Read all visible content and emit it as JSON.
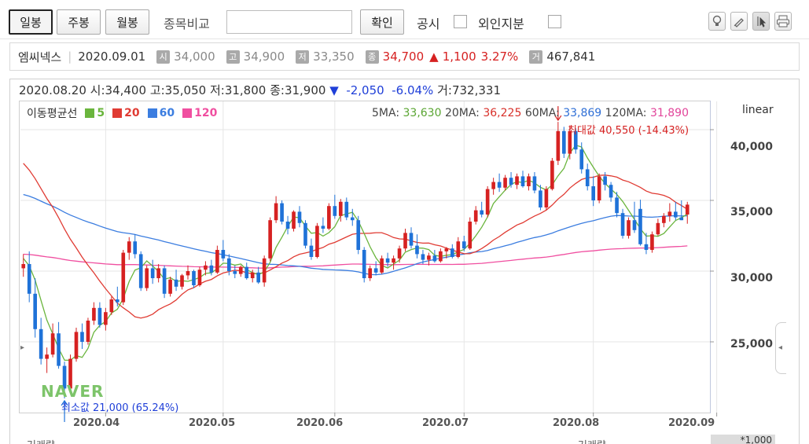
{
  "toolbar": {
    "tabs": [
      {
        "label": "일봉",
        "active": true
      },
      {
        "label": "주봉",
        "active": false
      },
      {
        "label": "월봉",
        "active": false
      }
    ],
    "compare_label": "종목비교",
    "confirm_label": "확인",
    "disclosure_label": "공시",
    "foreign_label": "외인지분",
    "tool_icons": [
      "bulb-icon",
      "pen-icon",
      "cursor-icon",
      "print-icon"
    ]
  },
  "summary": {
    "name": "엠씨넥스",
    "date": "2020.09.01",
    "open_badge": "시",
    "open": "34,000",
    "high_badge": "고",
    "high": "34,900",
    "low_badge": "저",
    "low": "33,350",
    "close_badge": "종",
    "close": "34,700",
    "change_arrow": "▲",
    "change": "1,100",
    "change_pct": "3.27%",
    "volume_badge": "거",
    "volume": "467,841"
  },
  "info": {
    "date": "2020.08.20",
    "open_label": "시:",
    "open": "34,400",
    "high_label": "고:",
    "high": "35,050",
    "low_label": "저:",
    "low": "31,800",
    "close_label": "종:",
    "close": "31,900",
    "arrow": "▼",
    "change": "-2,050",
    "change_pct": "-6.04%",
    "volume_label": "거:",
    "volume": "732,331"
  },
  "legend": {
    "title": "이동평균선",
    "items": [
      {
        "label": "5",
        "color": "#6ab53d"
      },
      {
        "label": "20",
        "color": "#e03b33"
      },
      {
        "label": "60",
        "color": "#3b7de0"
      },
      {
        "label": "120",
        "color": "#f04fa0"
      }
    ]
  },
  "ma_values": {
    "ma5_label": "5MA:",
    "ma5": "33,630",
    "ma20_label": "20MA:",
    "ma20": "36,225",
    "ma60_label": "60MA:",
    "ma60": "33,869",
    "ma120_label": "120MA:",
    "ma120": "31,890"
  },
  "scale_label": "linear",
  "annotations": {
    "max": "최대값 40,550 (-14.43%)",
    "min": "최소값 21,000 (65.24%)",
    "logo": "NAVER"
  },
  "bottom": {
    "left_label": "거래량",
    "right_label": "거래량",
    "unit": "*1,000"
  },
  "colors": {
    "up": "#d62121",
    "down": "#1f72d8",
    "ma5": "#6ab53d",
    "ma20": "#e03b33",
    "ma60": "#3b7de0",
    "ma120": "#f04fa0"
  },
  "chart_data": {
    "type": "candlestick",
    "ylim": [
      20000,
      42000
    ],
    "yticks": [
      "25,000",
      "30,000",
      "35,000",
      "40,000"
    ],
    "ytick_values": [
      25000,
      30000,
      35000,
      40000
    ],
    "xticks": [
      "2020.04",
      "2020.05",
      "2020.06",
      "2020.07",
      "2020.08",
      "2020.09"
    ],
    "xtick_index": [
      14,
      34,
      53,
      75,
      97,
      118
    ],
    "candles": [
      [
        30200,
        31200,
        29600,
        30500
      ],
      [
        30500,
        31400,
        27800,
        28400
      ],
      [
        28400,
        29500,
        25300,
        25900
      ],
      [
        25900,
        26700,
        23400,
        23800
      ],
      [
        23800,
        24600,
        22800,
        24100
      ],
      [
        24100,
        26300,
        23900,
        25600
      ],
      [
        25600,
        26400,
        23100,
        23300
      ],
      [
        23300,
        23600,
        21000,
        21700
      ],
      [
        21700,
        24100,
        21500,
        23800
      ],
      [
        23800,
        26000,
        23600,
        25700
      ],
      [
        25700,
        26300,
        24500,
        25000
      ],
      [
        25000,
        26700,
        24800,
        26500
      ],
      [
        26500,
        27800,
        26200,
        27400
      ],
      [
        27400,
        27800,
        26000,
        26200
      ],
      [
        26200,
        27400,
        25800,
        27100
      ],
      [
        27100,
        28200,
        26900,
        28000
      ],
      [
        28000,
        28900,
        27500,
        27800
      ],
      [
        27800,
        31500,
        27600,
        31300
      ],
      [
        31300,
        32400,
        30800,
        32100
      ],
      [
        32100,
        32600,
        30900,
        31200
      ],
      [
        31200,
        31400,
        28600,
        28800
      ],
      [
        28800,
        30400,
        28600,
        30200
      ],
      [
        30200,
        30800,
        29100,
        29500
      ],
      [
        29500,
        30500,
        29200,
        30200
      ],
      [
        30200,
        30400,
        28100,
        28400
      ],
      [
        28400,
        29600,
        28200,
        29400
      ],
      [
        29400,
        30100,
        28600,
        28900
      ],
      [
        28900,
        29800,
        28700,
        29700
      ],
      [
        29700,
        30400,
        29400,
        30000
      ],
      [
        30000,
        30100,
        28800,
        29000
      ],
      [
        29000,
        30300,
        28900,
        30100
      ],
      [
        30100,
        30700,
        29700,
        30400
      ],
      [
        30400,
        30800,
        29700,
        29900
      ],
      [
        29900,
        31800,
        29800,
        31500
      ],
      [
        31500,
        32200,
        30700,
        30900
      ],
      [
        30900,
        31200,
        29700,
        30000
      ],
      [
        30000,
        30400,
        29500,
        29800
      ],
      [
        29800,
        30400,
        29600,
        30300
      ],
      [
        30300,
        30600,
        29400,
        29500
      ],
      [
        29500,
        30100,
        29200,
        29900
      ],
      [
        29900,
        30300,
        29100,
        29200
      ],
      [
        29200,
        31100,
        28900,
        30900
      ],
      [
        30900,
        33800,
        30700,
        33600
      ],
      [
        33600,
        35300,
        33400,
        34800
      ],
      [
        34800,
        35000,
        33300,
        33500
      ],
      [
        33500,
        33900,
        32600,
        33000
      ],
      [
        33000,
        34300,
        32800,
        34200
      ],
      [
        34200,
        34600,
        33100,
        33400
      ],
      [
        33400,
        33600,
        31600,
        31800
      ],
      [
        31800,
        32300,
        30800,
        31000
      ],
      [
        31000,
        33400,
        30900,
        33200
      ],
      [
        33200,
        33800,
        32700,
        33000
      ],
      [
        33000,
        34800,
        32900,
        34600
      ],
      [
        34600,
        35400,
        33700,
        33900
      ],
      [
        33900,
        35100,
        33500,
        34900
      ],
      [
        34900,
        35200,
        33600,
        33800
      ],
      [
        33800,
        34400,
        33200,
        33600
      ],
      [
        33600,
        33900,
        31200,
        31500
      ],
      [
        31500,
        31700,
        29200,
        29500
      ],
      [
        29500,
        30400,
        29300,
        30200
      ],
      [
        30200,
        30700,
        29700,
        29900
      ],
      [
        29900,
        31100,
        29800,
        30900
      ],
      [
        30900,
        31300,
        30300,
        30600
      ],
      [
        30600,
        31100,
        30100,
        30900
      ],
      [
        30900,
        31800,
        30600,
        31600
      ],
      [
        31600,
        33000,
        31400,
        32700
      ],
      [
        32700,
        33100,
        31600,
        31800
      ],
      [
        31800,
        32600,
        30900,
        31200
      ],
      [
        31200,
        31500,
        30500,
        30800
      ],
      [
        30800,
        31300,
        30400,
        31100
      ],
      [
        31100,
        31500,
        30600,
        30700
      ],
      [
        30700,
        31600,
        30600,
        31400
      ],
      [
        31400,
        31700,
        30900,
        31600
      ],
      [
        31600,
        31900,
        30900,
        31000
      ],
      [
        31000,
        32400,
        30900,
        32100
      ],
      [
        32100,
        32500,
        31400,
        31600
      ],
      [
        31600,
        33800,
        31500,
        33500
      ],
      [
        33500,
        34600,
        33300,
        34300
      ],
      [
        34300,
        34900,
        33800,
        34000
      ],
      [
        34000,
        36000,
        33800,
        35800
      ],
      [
        35800,
        36600,
        35400,
        36300
      ],
      [
        36300,
        36900,
        35600,
        35900
      ],
      [
        35900,
        36800,
        35700,
        36600
      ],
      [
        36600,
        37000,
        35900,
        36100
      ],
      [
        36100,
        36900,
        35800,
        36700
      ],
      [
        36700,
        37100,
        35900,
        36000
      ],
      [
        36000,
        36900,
        35700,
        36700
      ],
      [
        36700,
        37000,
        35500,
        35700
      ],
      [
        35700,
        36100,
        34300,
        34500
      ],
      [
        34500,
        36000,
        34300,
        35800
      ],
      [
        35800,
        38000,
        35700,
        37800
      ],
      [
        37800,
        40550,
        37500,
        39900
      ],
      [
        39900,
        40200,
        38000,
        38300
      ],
      [
        38300,
        40300,
        37900,
        39900
      ],
      [
        39900,
        40100,
        38300,
        38600
      ],
      [
        38600,
        39100,
        36900,
        37200
      ],
      [
        37200,
        37600,
        35700,
        36000
      ],
      [
        36000,
        36700,
        34600,
        35000
      ],
      [
        35000,
        36900,
        34800,
        36700
      ],
      [
        36700,
        37000,
        35700,
        36100
      ],
      [
        36100,
        36300,
        34900,
        35200
      ],
      [
        35200,
        35600,
        33800,
        34100
      ],
      [
        34100,
        34400,
        32300,
        32500
      ],
      [
        32500,
        33800,
        32300,
        33600
      ],
      [
        33600,
        34900,
        32700,
        32900
      ],
      [
        34400,
        35050,
        31800,
        31900
      ],
      [
        31900,
        32700,
        31200,
        31500
      ],
      [
        31500,
        32800,
        31300,
        32600
      ],
      [
        32600,
        33700,
        32500,
        33400
      ],
      [
        33400,
        34100,
        33100,
        33900
      ],
      [
        33900,
        34800,
        33500,
        34200
      ],
      [
        34200,
        34900,
        33600,
        33800
      ],
      [
        33800,
        35000,
        33600,
        33600
      ],
      [
        34000,
        34900,
        33350,
        34700
      ]
    ]
  }
}
